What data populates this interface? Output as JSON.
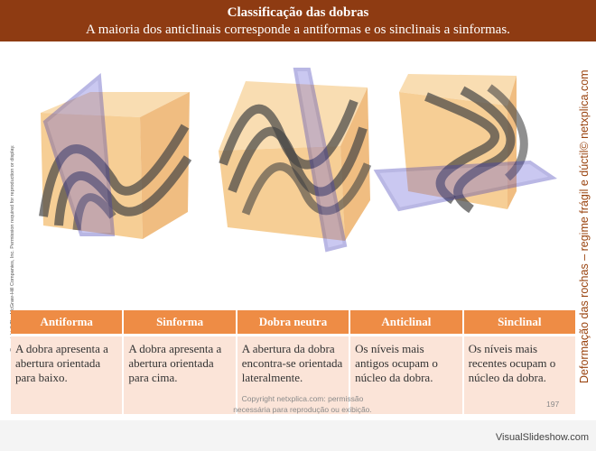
{
  "header": {
    "title": "Classificação das dobras",
    "subtitle": "A maioria dos anticlinais corresponde a antiformas e os sinclinais a sinformas."
  },
  "left_copyright": "Copyright © The McGraw-Hill Companies, Inc. Permission required for reproduction or display.",
  "side_title": "Deformação das rochas – regime frágil e dúctil© netxplica.com",
  "figures": [
    {
      "name": "antiforma-block-diagram"
    },
    {
      "name": "sinforma-block-diagram"
    },
    {
      "name": "dobra-neutra-block-diagram"
    }
  ],
  "table": {
    "headers": [
      "Antiforma",
      "Sinforma",
      "Dobra neutra",
      "Anticlinal",
      "Sinclinal"
    ],
    "descriptions": [
      "A dobra apresenta a abertura orientada para baixo.",
      "A dobra apresenta a abertura orientada para cima.",
      "A abertura da dobra encontra-se orientada lateralmente.",
      "Os níveis mais antigos ocupam o núcleo da dobra.",
      "Os níveis mais recentes ocupam o núcleo da dobra."
    ]
  },
  "footer": {
    "copyright_line1": "Copyright netxplica.com: permissão",
    "copyright_line2": "necessária para reprodução ou exibição.",
    "page_number": "197",
    "brand": "VisualSlideshow.com"
  },
  "colors": {
    "header_bg": "#8e3b12",
    "table_header_bg": "#ee8c45",
    "table_cell_bg": "#fbe4d8",
    "side_title": "#9a4410",
    "block_face": "#f5c98a",
    "fold_band": "#3a3a3a",
    "axial_plane": "#3a35b5"
  }
}
